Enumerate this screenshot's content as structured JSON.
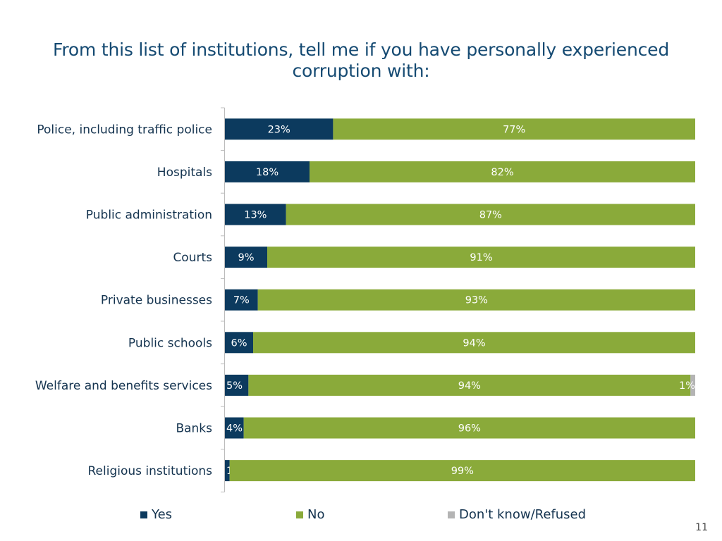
{
  "title": "From this list of institutions, tell me if you have personally experienced corruption with:",
  "page_number": "11",
  "colors": {
    "yes": "#0c3a5e",
    "no": "#8aaa3a",
    "dk": "#b4b4b4",
    "axis": "#bcbcbc"
  },
  "chart_data": {
    "type": "bar",
    "orientation": "horizontal",
    "stacked": true,
    "percent_stacked": true,
    "title": "From this list of institutions, tell me if you have personally experienced corruption with:",
    "xlabel": "",
    "ylabel": "",
    "xlim": [
      0,
      100
    ],
    "categories": [
      "Police, including traffic police",
      "Hospitals",
      "Public administration",
      "Courts",
      "Private businesses",
      "Public schools",
      "Welfare and benefits services",
      "Banks",
      "Religious institutions"
    ],
    "series": [
      {
        "name": "Yes",
        "key": "yes",
        "values": [
          23,
          18,
          13,
          9,
          7,
          6,
          5,
          4,
          1
        ],
        "labels": [
          "23%",
          "18%",
          "13%",
          "9%",
          "7%",
          "6%",
          "5%",
          "4%",
          "1%"
        ]
      },
      {
        "name": "No",
        "key": "no",
        "values": [
          77,
          82,
          87,
          91,
          93,
          94,
          94,
          96,
          99
        ],
        "labels": [
          "77%",
          "82%",
          "87%",
          "91%",
          "93%",
          "94%",
          "94%",
          "96%",
          "99%"
        ]
      },
      {
        "name": "Don't know/Refused",
        "key": "dk",
        "values": [
          0,
          0,
          0,
          0,
          0,
          0,
          1,
          0,
          0
        ],
        "labels": [
          "",
          "",
          "",
          "",
          "",
          "",
          "1%",
          "",
          ""
        ]
      }
    ],
    "legend": {
      "position": "bottom",
      "items": [
        {
          "label": "Yes",
          "key": "yes"
        },
        {
          "label": "No",
          "key": "no"
        },
        {
          "label": "Don't know/Refused",
          "key": "dk"
        }
      ]
    }
  }
}
